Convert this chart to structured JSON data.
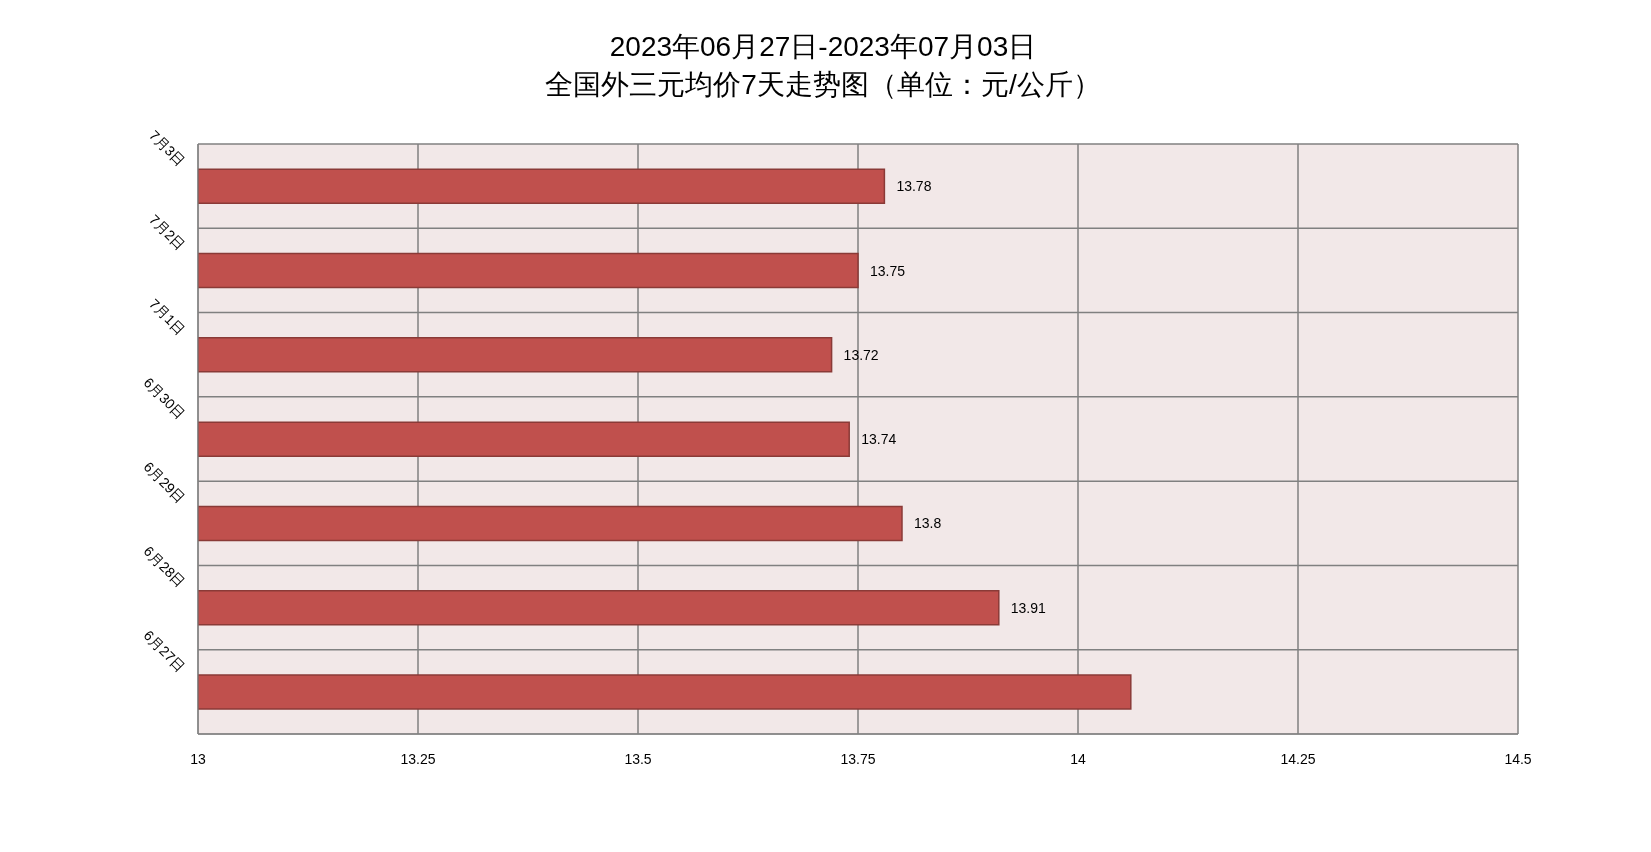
{
  "chart_data": {
    "type": "bar",
    "orientation": "horizontal",
    "title": "2023年06月27日-2023年07月03日",
    "subtitle": "全国外三元均价7天走势图（单位：元/公斤）",
    "categories": [
      "7月3日",
      "7月2日",
      "7月1日",
      "6月30日",
      "6月29日",
      "6月28日",
      "6月27日"
    ],
    "values": [
      13.78,
      13.75,
      13.72,
      13.74,
      13.8,
      13.91,
      14.06
    ],
    "value_labels": [
      "13.78",
      "13.75",
      "13.72",
      "13.74",
      "13.8",
      "13.91",
      null
    ],
    "color": "#c0504d",
    "xlim": [
      13,
      14.5
    ],
    "xticks": [
      13,
      13.25,
      13.5,
      13.75,
      14,
      14.25,
      14.5
    ],
    "grid": true
  }
}
